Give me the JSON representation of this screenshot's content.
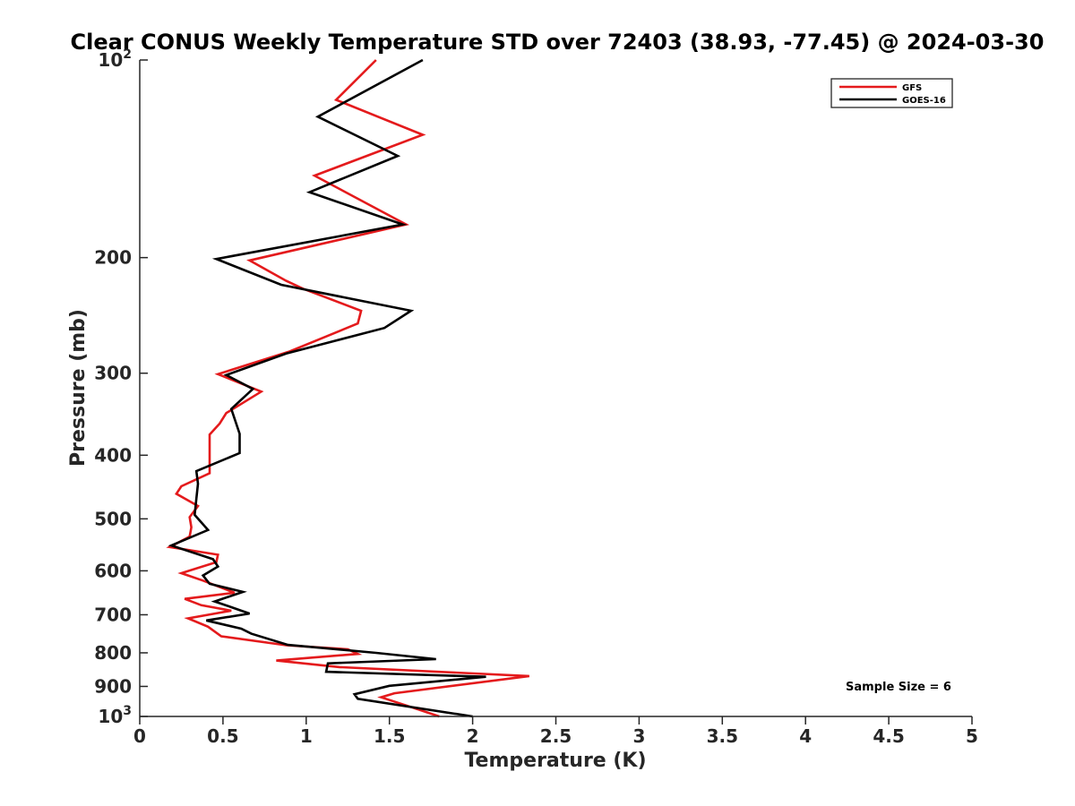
{
  "chart_data": {
    "type": "line",
    "title": "Clear CONUS Weekly Temperature STD over 72403 (38.93, -77.45) @ 2024-03-30",
    "xlabel": "Temperature (K)",
    "ylabel": "Pressure (mb)",
    "xlim": [
      0,
      5
    ],
    "ylim": [
      100,
      1000
    ],
    "y_scale": "log",
    "y_reversed": true,
    "x_ticks": [
      "0",
      "0.5",
      "1",
      "1.5",
      "2",
      "2.5",
      "3",
      "3.5",
      "4",
      "4.5",
      "5"
    ],
    "y_ticks": [
      {
        "value": 100,
        "base": "10",
        "exp": "2"
      },
      {
        "value": 200,
        "label": "200"
      },
      {
        "value": 300,
        "label": "300"
      },
      {
        "value": 400,
        "label": "400"
      },
      {
        "value": 500,
        "label": "500"
      },
      {
        "value": 600,
        "label": "600"
      },
      {
        "value": 700,
        "label": "700"
      },
      {
        "value": 800,
        "label": "800"
      },
      {
        "value": 900,
        "label": "900"
      },
      {
        "value": 1000,
        "base": "10",
        "exp": "3"
      }
    ],
    "grid": false,
    "legend_position": "top-right",
    "annotation": "Sample Size = 6",
    "series": [
      {
        "name": "GFS",
        "color": "#e41a1c",
        "points": [
          [
            1.42,
            100
          ],
          [
            1.18,
            115
          ],
          [
            1.7,
            130
          ],
          [
            1.05,
            150
          ],
          [
            1.6,
            178
          ],
          [
            0.66,
            202
          ],
          [
            0.88,
            217
          ],
          [
            0.98,
            223
          ],
          [
            1.33,
            241
          ],
          [
            1.31,
            252
          ],
          [
            0.9,
            278
          ],
          [
            0.47,
            301
          ],
          [
            0.73,
            320
          ],
          [
            0.52,
            345
          ],
          [
            0.48,
            358
          ],
          [
            0.42,
            372
          ],
          [
            0.42,
            393
          ],
          [
            0.42,
            426
          ],
          [
            0.25,
            446
          ],
          [
            0.22,
            458
          ],
          [
            0.35,
            478
          ],
          [
            0.3,
            497
          ],
          [
            0.31,
            515
          ],
          [
            0.3,
            532
          ],
          [
            0.18,
            552
          ],
          [
            0.47,
            567
          ],
          [
            0.46,
            582
          ],
          [
            0.25,
            605
          ],
          [
            0.38,
            621
          ],
          [
            0.57,
            648
          ],
          [
            0.27,
            662
          ],
          [
            0.37,
            677
          ],
          [
            0.55,
            690
          ],
          [
            0.29,
            709
          ],
          [
            0.41,
            730
          ],
          [
            0.49,
            755
          ],
          [
            0.88,
            779
          ],
          [
            1.25,
            790
          ],
          [
            1.31,
            803
          ],
          [
            0.82,
            822
          ],
          [
            1.2,
            841
          ],
          [
            2.34,
            868
          ],
          [
            1.53,
            922
          ],
          [
            1.45,
            935
          ],
          [
            1.6,
            962
          ],
          [
            1.8,
            1000
          ]
        ]
      },
      {
        "name": "GOES-16",
        "color": "#000000",
        "points": [
          [
            1.7,
            100
          ],
          [
            1.07,
            122
          ],
          [
            1.55,
            140
          ],
          [
            1.02,
            159
          ],
          [
            1.58,
            178
          ],
          [
            0.46,
            201
          ],
          [
            0.85,
            220
          ],
          [
            1.63,
            241
          ],
          [
            1.47,
            256
          ],
          [
            0.88,
            280
          ],
          [
            0.52,
            302
          ],
          [
            0.68,
            317
          ],
          [
            0.55,
            340
          ],
          [
            0.6,
            371
          ],
          [
            0.6,
            397
          ],
          [
            0.34,
            423
          ],
          [
            0.35,
            442
          ],
          [
            0.34,
            466
          ],
          [
            0.33,
            493
          ],
          [
            0.41,
            520
          ],
          [
            0.19,
            549
          ],
          [
            0.44,
            576
          ],
          [
            0.47,
            591
          ],
          [
            0.38,
            610
          ],
          [
            0.42,
            628
          ],
          [
            0.62,
            646
          ],
          [
            0.45,
            668
          ],
          [
            0.56,
            683
          ],
          [
            0.66,
            697
          ],
          [
            0.4,
            714
          ],
          [
            0.61,
            735
          ],
          [
            0.67,
            748
          ],
          [
            0.89,
            778
          ],
          [
            1.42,
            800
          ],
          [
            1.78,
            818
          ],
          [
            1.13,
            830
          ],
          [
            1.12,
            855
          ],
          [
            2.08,
            870
          ],
          [
            1.5,
            898
          ],
          [
            1.29,
            925
          ],
          [
            1.31,
            940
          ],
          [
            2.0,
            1000
          ]
        ]
      }
    ]
  }
}
